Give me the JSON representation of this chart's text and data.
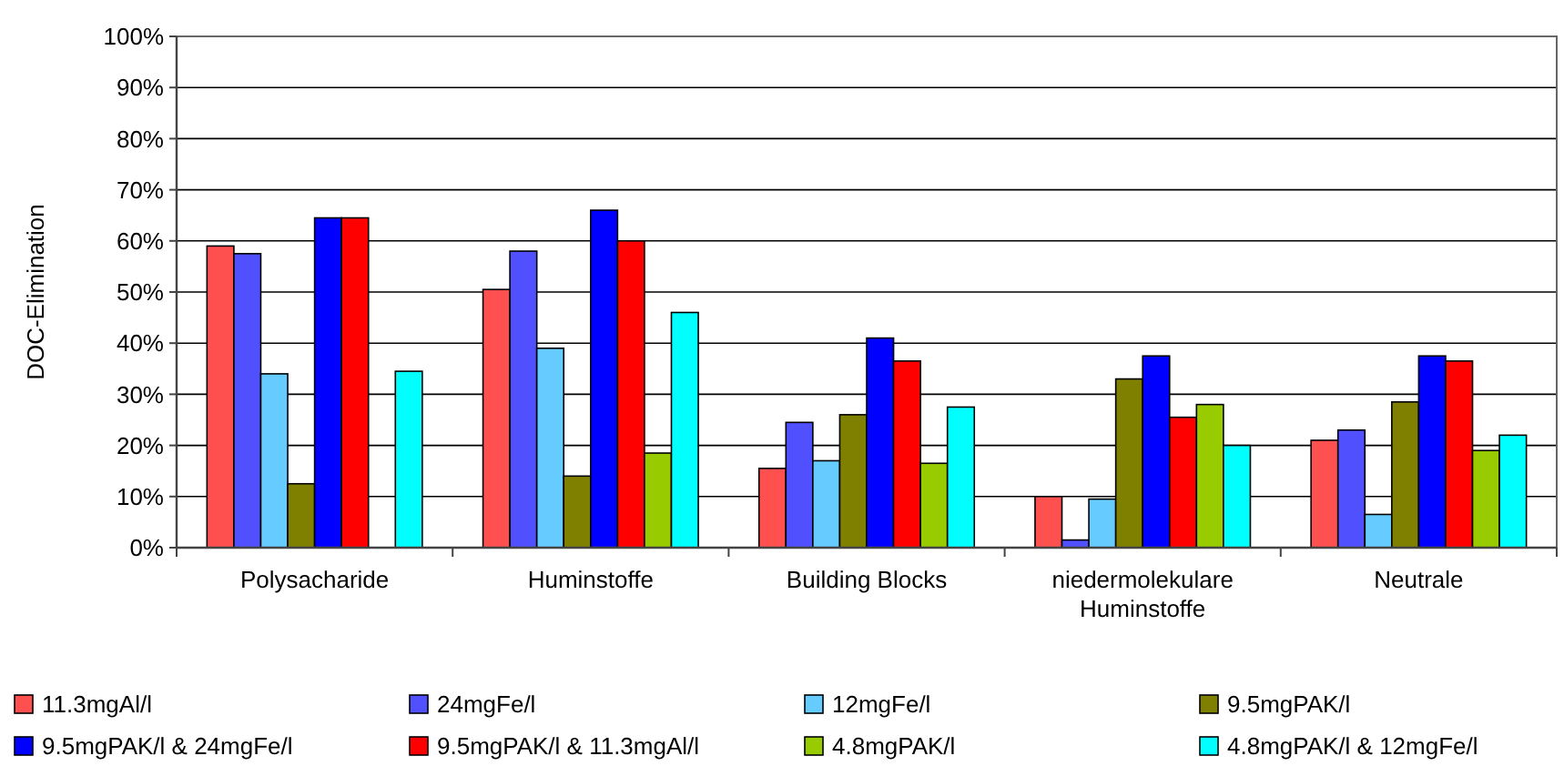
{
  "chart_data": {
    "type": "bar",
    "ylabel": "DOC-Elimination",
    "categories": [
      "Polysacharide",
      "Huminstoffe",
      "Building Blocks",
      "niedermolekulare Huminstoffe",
      "Neutrale"
    ],
    "series": [
      {
        "name": "11.3mgAl/l",
        "color": "#ff5050",
        "values": [
          59,
          50.5,
          15.5,
          10,
          21
        ]
      },
      {
        "name": "24mgFe/l",
        "color": "#5050ff",
        "values": [
          57.5,
          58,
          24.5,
          1.5,
          23
        ]
      },
      {
        "name": "12mgFe/l",
        "color": "#66ccff",
        "values": [
          34,
          39,
          17,
          9.5,
          6.5
        ]
      },
      {
        "name": "9.5mgPAK/l",
        "color": "#808000",
        "values": [
          12.5,
          14,
          26,
          33,
          28.5
        ]
      },
      {
        "name": "9.5mgPAK/l & 24mgFe/l",
        "color": "#0000ff",
        "values": [
          64.5,
          66,
          41,
          37.5,
          37.5
        ]
      },
      {
        "name": "9.5mgPAK/l & 11.3mgAl/l",
        "color": "#ff0000",
        "values": [
          64.5,
          60,
          36.5,
          25.5,
          36.5
        ]
      },
      {
        "name": "4.8mgPAK/l",
        "color": "#99cc00",
        "values": [
          null,
          18.5,
          16.5,
          28,
          19
        ]
      },
      {
        "name": "4.8mgPAK/l & 12mgFe/l",
        "color": "#00ffff",
        "values": [
          34.5,
          46,
          27.5,
          20,
          22
        ]
      }
    ],
    "ylim": [
      0,
      100
    ],
    "yticks": [
      {
        "value": 0,
        "label": "0%"
      },
      {
        "value": 10,
        "label": "10%"
      },
      {
        "value": 20,
        "label": "20%"
      },
      {
        "value": 30,
        "label": "30%"
      },
      {
        "value": 40,
        "label": "40%"
      },
      {
        "value": 50,
        "label": "50%"
      },
      {
        "value": 60,
        "label": "60%"
      },
      {
        "value": 70,
        "label": "70%"
      },
      {
        "value": 80,
        "label": "80%"
      },
      {
        "value": 90,
        "label": "90%"
      },
      {
        "value": 100,
        "label": "100%"
      }
    ],
    "grid": "y",
    "legend": "bottom"
  }
}
